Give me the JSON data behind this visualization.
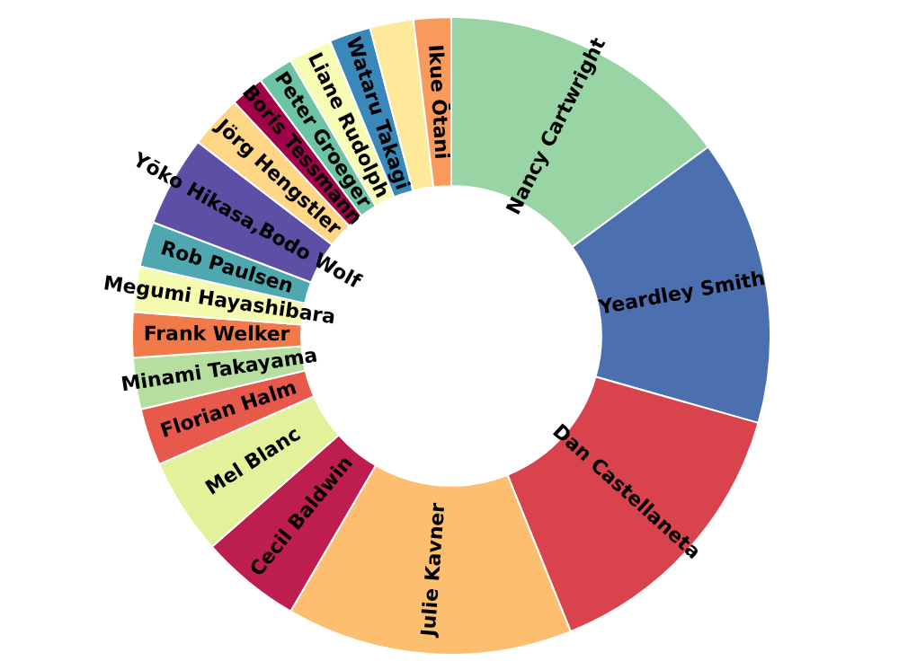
{
  "chart_data": {
    "type": "donut",
    "categories": [
      "Nancy Cartwright",
      "Yeardley Smith",
      "Dan Castellaneta",
      "Julie Kavner",
      "Cecil Baldwin",
      "Mel Blanc",
      "Florian Halm",
      "Minami Takayama",
      "Frank Welker",
      "Megumi Hayashibara",
      "Rob Paulsen",
      "Yōko Hikasa,Bodo Wolf",
      "Jörg Hengstler",
      "Boris Tessmann",
      "Peter Groeger",
      "Liane Rudolph",
      "Wataru Takagi",
      null,
      "Ikue Ōtani"
    ],
    "values": [
      14.9,
      14.5,
      14.5,
      14.5,
      5.1,
      4.9,
      2.9,
      2.6,
      2.3,
      2.3,
      2.3,
      4.6,
      2.7,
      1.7,
      1.8,
      2.2,
      2.1,
      2.2,
      1.9
    ],
    "colors": [
      "#99d5a4",
      "#4c6fb0",
      "#d8434e",
      "#fdbf6f",
      "#be1e4d",
      "#e3f19b",
      "#e75a4b",
      "#b5de9f",
      "#f07a4a",
      "#f4fbaf",
      "#4fa7b0",
      "#5c4fa5",
      "#fed685",
      "#a0034a",
      "#6cc4a4",
      "#f7fcb4",
      "#3a88b9",
      "#fee89a",
      "#f89a5b"
    ]
  }
}
